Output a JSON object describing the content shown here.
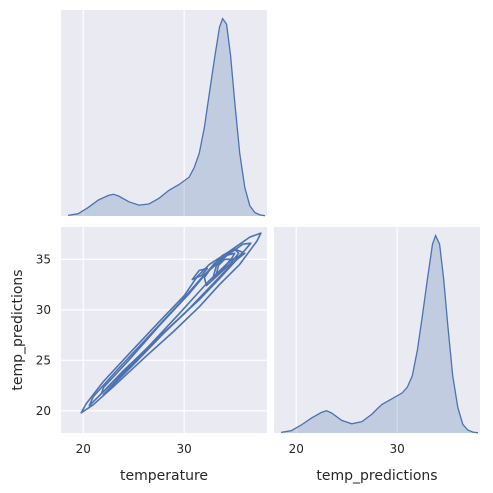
{
  "chart_data": {
    "type": "pairgrid-kde",
    "variables": [
      "temperature",
      "temp_predictions"
    ],
    "xlabels": [
      "temperature",
      "temp_predictions"
    ],
    "ylabel": "temp_predictions",
    "axis_range": [
      17.8,
      38.2
    ],
    "ticks": [
      20,
      25,
      30,
      35
    ],
    "x_tick_labels": [
      "20",
      "30"
    ],
    "y_tick_labels": [
      "20",
      "25",
      "30",
      "35"
    ],
    "grid": true,
    "corner": true,
    "diag_temperature_density": {
      "x": [
        18.5,
        19.5,
        20.5,
        21.5,
        22.5,
        23.0,
        23.5,
        24.5,
        25.5,
        26.5,
        27.5,
        28.0,
        28.5,
        29.5,
        30.5,
        31.0,
        31.5,
        32.0,
        32.5,
        33.0,
        33.5,
        33.8,
        34.2,
        34.6,
        35.0,
        35.5,
        36.0,
        36.5,
        37.0,
        37.5,
        38.0
      ],
      "y": [
        0.001,
        0.004,
        0.015,
        0.028,
        0.036,
        0.038,
        0.035,
        0.025,
        0.019,
        0.021,
        0.031,
        0.038,
        0.045,
        0.055,
        0.068,
        0.085,
        0.11,
        0.155,
        0.215,
        0.275,
        0.33,
        0.345,
        0.335,
        0.28,
        0.2,
        0.11,
        0.05,
        0.018,
        0.006,
        0.002,
        0.0005
      ]
    },
    "diag_temp_predictions_density": {
      "x": [
        18.5,
        19.5,
        20.5,
        21.5,
        22.5,
        23.0,
        23.5,
        24.5,
        25.5,
        26.5,
        27.5,
        28.0,
        28.5,
        29.5,
        30.5,
        31.0,
        31.5,
        32.0,
        32.5,
        33.0,
        33.5,
        33.8,
        34.2,
        34.6,
        35.0,
        35.5,
        36.0,
        36.5,
        37.0,
        37.5,
        38.0
      ],
      "y": [
        0.001,
        0.004,
        0.014,
        0.026,
        0.036,
        0.039,
        0.035,
        0.022,
        0.016,
        0.02,
        0.033,
        0.042,
        0.05,
        0.06,
        0.07,
        0.08,
        0.1,
        0.145,
        0.205,
        0.27,
        0.33,
        0.345,
        0.33,
        0.27,
        0.19,
        0.1,
        0.045,
        0.015,
        0.005,
        0.0015,
        0.0004
      ]
    },
    "density_ymax": 0.36,
    "kde_contours": [
      [
        [
          19.8,
          19.8
        ],
        [
          21,
          20.6
        ],
        [
          23,
          22.4
        ],
        [
          26,
          25.2
        ],
        [
          29,
          27.9
        ],
        [
          31.5,
          30.3
        ],
        [
          33.5,
          32.5
        ],
        [
          35.5,
          34.5
        ],
        [
          37.2,
          36.8
        ],
        [
          37.6,
          37.6
        ],
        [
          36.5,
          37.2
        ],
        [
          34.5,
          35.8
        ],
        [
          32.5,
          34.5
        ],
        [
          31.3,
          33.3
        ],
        [
          30.0,
          31.4
        ],
        [
          27.5,
          28.8
        ],
        [
          24.5,
          25.6
        ],
        [
          22,
          22.9
        ],
        [
          20.3,
          20.7
        ],
        [
          19.8,
          19.8
        ]
      ],
      [
        [
          20.6,
          20.5
        ],
        [
          23,
          22.9
        ],
        [
          26,
          25.9
        ],
        [
          29,
          28.7
        ],
        [
          31.5,
          31.0
        ],
        [
          33.6,
          33.2
        ],
        [
          35.5,
          35.3
        ],
        [
          36.6,
          36.6
        ],
        [
          35.8,
          36.5
        ],
        [
          34.0,
          35.2
        ],
        [
          32.0,
          33.5
        ],
        [
          29.5,
          30.6
        ],
        [
          26.5,
          27.4
        ],
        [
          23.5,
          24.2
        ],
        [
          21.0,
          21.4
        ],
        [
          20.6,
          20.5
        ]
      ],
      [
        [
          21.8,
          21.7
        ],
        [
          24,
          24.0
        ],
        [
          27,
          26.8
        ],
        [
          30.0,
          29.6
        ],
        [
          32.5,
          32.2
        ],
        [
          34.5,
          34.3
        ],
        [
          35.8,
          35.7
        ],
        [
          35.0,
          36.0
        ],
        [
          33.0,
          34.6
        ],
        [
          30.5,
          31.6
        ],
        [
          27.5,
          28.4
        ],
        [
          24.5,
          25.0
        ],
        [
          22.0,
          22.3
        ],
        [
          21.8,
          21.7
        ]
      ],
      [
        [
          30.8,
          33.0
        ],
        [
          31.5,
          33.9
        ],
        [
          32.3,
          34.1
        ],
        [
          31.7,
          33.4
        ],
        [
          30.8,
          33.0
        ]
      ],
      [
        [
          32.2,
          32.4
        ],
        [
          33.2,
          33.3
        ],
        [
          34.5,
          34.5
        ],
        [
          35.4,
          35.6
        ],
        [
          35.0,
          36.0
        ],
        [
          33.8,
          35.4
        ],
        [
          32.7,
          34.2
        ],
        [
          32.0,
          33.2
        ],
        [
          32.2,
          32.4
        ]
      ],
      [
        [
          32.8,
          33.0
        ],
        [
          33.6,
          33.8
        ],
        [
          34.6,
          34.9
        ],
        [
          35.0,
          35.6
        ],
        [
          34.2,
          35.4
        ],
        [
          33.2,
          34.4
        ],
        [
          32.8,
          33.0
        ]
      ],
      [
        [
          33.2,
          33.6
        ],
        [
          34.0,
          34.2
        ],
        [
          34.6,
          35.0
        ],
        [
          34.0,
          35.0
        ],
        [
          33.4,
          34.4
        ],
        [
          33.2,
          33.6
        ]
      ],
      [
        [
          22.0,
          21.6
        ],
        [
          25,
          24.6
        ],
        [
          28,
          27.7
        ],
        [
          31,
          30.6
        ],
        [
          33.2,
          32.8
        ],
        [
          35.0,
          34.8
        ],
        [
          36.0,
          35.6
        ],
        [
          34.6,
          34.9
        ],
        [
          32.4,
          32.8
        ],
        [
          29.5,
          29.6
        ],
        [
          26.5,
          26.4
        ],
        [
          23.5,
          23.2
        ],
        [
          22.0,
          21.6
        ]
      ]
    ],
    "colors": {
      "line": "#4c72b0",
      "fill": "#4c72b0",
      "panel_bg": "#eaeaf2",
      "grid": "#ffffff"
    }
  }
}
